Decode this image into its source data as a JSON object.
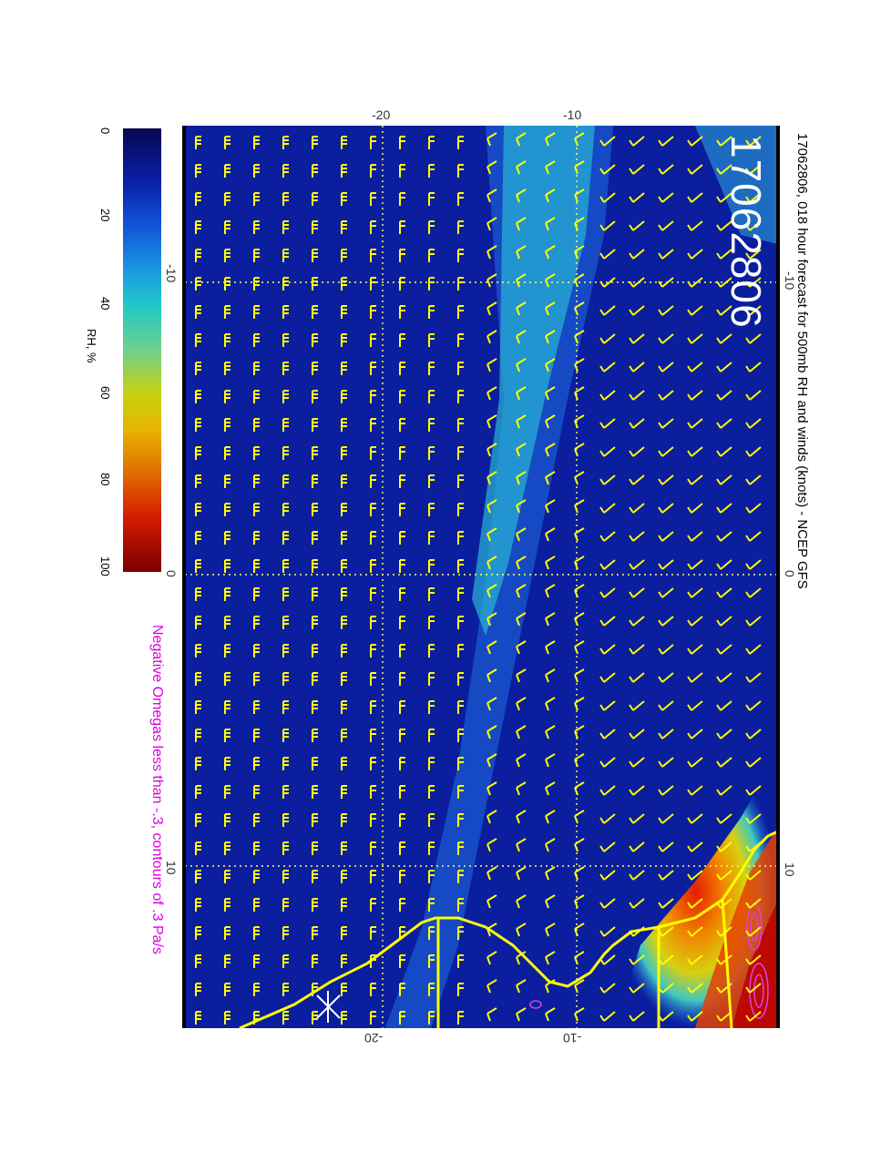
{
  "title": "17062806, 018 hour forecast for 500mb RH and winds (knots) - NCEP GFS",
  "stamp": "17062806",
  "subtitle": "Negative Omegas less than -.3, contours of .3 Pa/s",
  "colorbar": {
    "label": "RH, %",
    "ticks": [
      "0",
      "20",
      "40",
      "60",
      "80",
      "100"
    ]
  },
  "axes": {
    "top_labels": [
      "-20",
      "-10"
    ],
    "bottom_labels": [
      "-20",
      "-10"
    ],
    "left_labels": [
      "-10",
      "0",
      "10"
    ],
    "right_labels": [
      "-10",
      "0",
      "10"
    ]
  },
  "colors": {
    "barb": "#ffff00",
    "coast": "#ffff00",
    "omega_contour": "#e040e0",
    "ocean_dark": "#0a1a9a",
    "grid": "#ffff66"
  }
}
